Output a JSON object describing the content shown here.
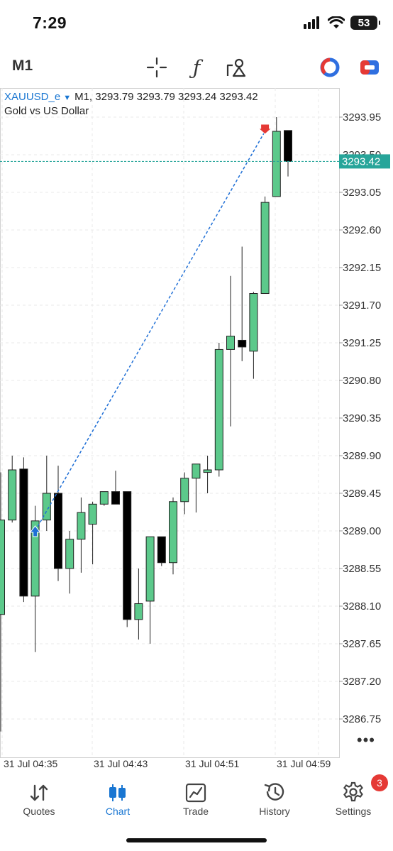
{
  "status_bar": {
    "time": "7:29",
    "battery": "53"
  },
  "toolbar": {
    "timeframe": "M1",
    "icons": [
      "crosshair-icon",
      "function-icon",
      "objects-icon",
      "one-click-trading-icon",
      "trade-panel-icon"
    ]
  },
  "chart": {
    "symbol": "XAUUSD_e",
    "ohlc_line": "M1, 3293.79 3293.79 3293.24 3293.42",
    "description": "Gold vs US Dollar",
    "current_price_label": "3293.42",
    "colors": {
      "bull": "#5cc98b",
      "bear": "#000000",
      "price_line": "#27a59a",
      "trade_line": "#1f6fd6",
      "grid": "#e8e8e8"
    }
  },
  "chart_data": {
    "type": "candlestick",
    "symbol": "XAUUSD_e",
    "timeframe": "M1",
    "y_ticks": [
      "3293.95",
      "3293.50",
      "3293.05",
      "3292.60",
      "3292.15",
      "3291.70",
      "3291.25",
      "3290.80",
      "3290.35",
      "3289.90",
      "3289.45",
      "3289.00",
      "3288.55",
      "3288.10",
      "3287.65",
      "3287.20",
      "3286.75"
    ],
    "ylim": [
      3286.5,
      3294.2
    ],
    "x_labels": [
      "31 Jul 04:35",
      "31 Jul 04:43",
      "31 Jul 04:51",
      "31 Jul 04:59"
    ],
    "current_price": 3293.42,
    "candles": [
      {
        "o": 3288.0,
        "h": 3289.7,
        "l": 3286.6,
        "c": 3289.13
      },
      {
        "o": 3289.13,
        "h": 3289.9,
        "l": 3289.1,
        "c": 3289.73
      },
      {
        "o": 3289.74,
        "h": 3289.88,
        "l": 3288.15,
        "c": 3288.22
      },
      {
        "o": 3288.22,
        "h": 3289.3,
        "l": 3287.55,
        "c": 3289.12
      },
      {
        "o": 3289.13,
        "h": 3289.9,
        "l": 3289.0,
        "c": 3289.45
      },
      {
        "o": 3289.45,
        "h": 3289.78,
        "l": 3288.4,
        "c": 3288.55
      },
      {
        "o": 3288.55,
        "h": 3289.0,
        "l": 3288.25,
        "c": 3288.9
      },
      {
        "o": 3288.9,
        "h": 3289.4,
        "l": 3288.5,
        "c": 3289.22
      },
      {
        "o": 3289.08,
        "h": 3289.35,
        "l": 3288.6,
        "c": 3289.32
      },
      {
        "o": 3289.32,
        "h": 3289.45,
        "l": 3289.3,
        "c": 3289.47
      },
      {
        "o": 3289.47,
        "h": 3289.72,
        "l": 3289.38,
        "c": 3289.32
      },
      {
        "o": 3289.47,
        "h": 3289.45,
        "l": 3287.85,
        "c": 3287.94
      },
      {
        "o": 3287.94,
        "h": 3288.55,
        "l": 3287.7,
        "c": 3288.13
      },
      {
        "o": 3288.16,
        "h": 3288.92,
        "l": 3287.65,
        "c": 3288.93
      },
      {
        "o": 3288.93,
        "h": 3288.93,
        "l": 3288.58,
        "c": 3288.62
      },
      {
        "o": 3288.62,
        "h": 3289.4,
        "l": 3288.48,
        "c": 3289.35
      },
      {
        "o": 3289.35,
        "h": 3289.7,
        "l": 3289.2,
        "c": 3289.63
      },
      {
        "o": 3289.63,
        "h": 3289.78,
        "l": 3289.22,
        "c": 3289.8
      },
      {
        "o": 3289.7,
        "h": 3289.9,
        "l": 3289.45,
        "c": 3289.73
      },
      {
        "o": 3289.73,
        "h": 3291.25,
        "l": 3289.65,
        "c": 3291.17
      },
      {
        "o": 3291.17,
        "h": 3292.05,
        "l": 3290.25,
        "c": 3291.33
      },
      {
        "o": 3291.28,
        "h": 3292.4,
        "l": 3291.03,
        "c": 3291.2
      },
      {
        "o": 3291.15,
        "h": 3291.86,
        "l": 3290.82,
        "c": 3291.84
      },
      {
        "o": 3291.84,
        "h": 3293.0,
        "l": 3291.84,
        "c": 3292.93
      },
      {
        "o": 3293.0,
        "h": 3293.95,
        "l": 3293.0,
        "c": 3293.78
      },
      {
        "o": 3293.79,
        "h": 3293.79,
        "l": 3293.24,
        "c": 3293.42
      }
    ]
  },
  "tabbar": {
    "tabs": [
      {
        "label": "Quotes"
      },
      {
        "label": "Chart"
      },
      {
        "label": "Trade"
      },
      {
        "label": "History"
      },
      {
        "label": "Settings",
        "badge": "3"
      }
    ]
  }
}
